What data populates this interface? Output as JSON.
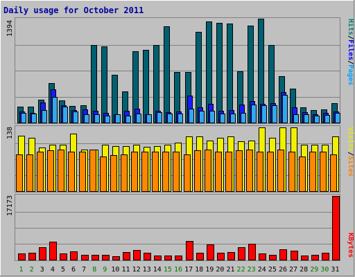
{
  "title": "Daily usage for October 2011",
  "colors": {
    "background": "#c0c0c0",
    "title": "#0000a0",
    "hits": "#006070",
    "files": "#1a1aff",
    "pages": "#33a8f0",
    "visits": "#f0f000",
    "sites": "#ff8800",
    "kbytes": "#ff0000",
    "weekend_label": "#007700",
    "weekday_label": "#000000"
  },
  "panels": {
    "hits_files_pages": {
      "max_label": "1394",
      "legend": [
        {
          "text": "Hits",
          "color": "#008070"
        },
        {
          "text": "/",
          "color": "#000000"
        },
        {
          "text": "Files",
          "color": "#0000ff"
        },
        {
          "text": "/",
          "color": "#000000"
        },
        {
          "text": "Pages",
          "color": "#00a0ff"
        }
      ]
    },
    "visits_sites": {
      "max_label": "138",
      "legend": [
        {
          "text": "Visits",
          "color": "#e8e800"
        },
        {
          "text": "/",
          "color": "#000000"
        },
        {
          "text": "Sites",
          "color": "#ff8000"
        }
      ]
    },
    "kbytes": {
      "max_label": "17173",
      "legend": [
        {
          "text": "KBytes",
          "color": "#ff0000"
        }
      ]
    }
  },
  "chart_data": {
    "type": "bar",
    "title": "Daily usage for October 2011",
    "categories": [
      "1",
      "2",
      "3",
      "4",
      "5",
      "6",
      "7",
      "8",
      "9",
      "10",
      "11",
      "12",
      "13",
      "14",
      "15",
      "16",
      "17",
      "18",
      "19",
      "20",
      "21",
      "22",
      "23",
      "24",
      "25",
      "26",
      "27",
      "28",
      "29",
      "30",
      "31"
    ],
    "weekend_days": [
      "1",
      "2",
      "8",
      "9",
      "15",
      "16",
      "22",
      "23",
      "29",
      "30"
    ],
    "groups": [
      {
        "name": "Hits / Files / Pages",
        "ylim": [
          0,
          1394
        ],
        "series": [
          {
            "name": "Hits",
            "values": [
              210,
              210,
              310,
              530,
              300,
              220,
              230,
              1040,
              1020,
              640,
              420,
              960,
              980,
              1040,
              1290,
              680,
              680,
              1220,
              1360,
              1340,
              1330,
              690,
              1300,
              1394,
              1040,
              620,
              460,
              200,
              170,
              180,
              260
            ]
          },
          {
            "name": "Files",
            "values": [
              150,
              130,
              270,
              450,
              230,
              170,
              180,
              160,
              130,
              110,
              160,
              190,
              110,
              160,
              140,
              150,
              360,
              200,
              250,
              160,
              170,
              240,
              290,
              250,
              260,
              410,
              200,
              140,
              110,
              130,
              150
            ]
          },
          {
            "name": "Pages",
            "values": [
              130,
              120,
              170,
              340,
              210,
              150,
              110,
              110,
              90,
              110,
              90,
              120,
              110,
              140,
              120,
              120,
              190,
              160,
              160,
              120,
              120,
              130,
              240,
              230,
              230,
              370,
              110,
              110,
              90,
              100,
              130
            ]
          }
        ]
      },
      {
        "name": "Visits / Sites",
        "ylim": [
          0,
          138
        ],
        "series": [
          {
            "name": "Visits",
            "values": [
              120,
              115,
              95,
              100,
              100,
              125,
              90,
              90,
              100,
              98,
              98,
              100,
              96,
              98,
              100,
              105,
              118,
              118,
              110,
              115,
              118,
              108,
              110,
              138,
              115,
              138,
              138,
              100,
              100,
              100,
              118
            ]
          },
          {
            "name": "Sites",
            "values": [
              80,
              80,
              85,
              88,
              90,
              85,
              85,
              90,
              75,
              78,
              80,
              85,
              85,
              85,
              85,
              85,
              80,
              88,
              90,
              85,
              85,
              88,
              90,
              85,
              85,
              90,
              85,
              75,
              85,
              85,
              80
            ]
          }
        ]
      },
      {
        "name": "KBytes",
        "ylim": [
          0,
          17173
        ],
        "series": [
          {
            "name": "KBytes",
            "values": [
              1700,
              1800,
              3300,
              4900,
              1600,
              2300,
              1300,
              1300,
              1300,
              850,
              2100,
              2700,
              1800,
              1200,
              1100,
              1200,
              5100,
              1800,
              4100,
              1800,
              2000,
              3300,
              4200,
              1600,
              1300,
              2800,
              2500,
              1200,
              1300,
              1900,
              17173
            ]
          }
        ]
      }
    ]
  }
}
